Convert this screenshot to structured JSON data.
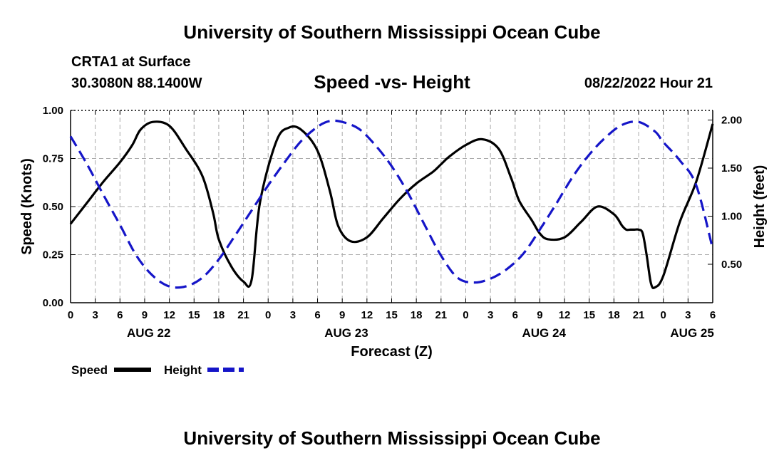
{
  "header": {
    "title": "University of Southern Mississippi Ocean Cube",
    "station": "CRTA1 at Surface",
    "coords": "30.3080N  88.1400W",
    "subtitle": "Speed -vs- Height",
    "datetime": "08/22/2022 Hour 21"
  },
  "footer": {
    "title": "University of Southern Mississippi Ocean Cube"
  },
  "chart_data": {
    "type": "line",
    "x_unit": "hours since 08/22 00Z",
    "x_range": [
      0,
      78
    ],
    "x_tick_step": 3,
    "x_tick_labels": [
      "0",
      "3",
      "6",
      "9",
      "12",
      "15",
      "18",
      "21",
      "0",
      "3",
      "6",
      "9",
      "12",
      "15",
      "18",
      "21",
      "0",
      "3",
      "6",
      "9",
      "12",
      "15",
      "18",
      "21",
      "0",
      "3",
      "6"
    ],
    "date_labels": [
      {
        "text": "AUG 22",
        "hour": 9.5
      },
      {
        "text": "AUG 23",
        "hour": 33.5
      },
      {
        "text": "AUG 24",
        "hour": 57.5
      },
      {
        "text": "AUG 25",
        "hour": 75.5
      }
    ],
    "xlabel": "Forecast (Z)",
    "ylabel_left": "Speed (Knots)",
    "ylabel_right": "Height (feet)",
    "ylim_left": [
      0,
      1.0
    ],
    "ylim_right": [
      0.1,
      2.1
    ],
    "yticks_left": [
      "0.00",
      "0.25",
      "0.50",
      "0.75",
      "1.00"
    ],
    "yticks_right": [
      "0.50",
      "1.00",
      "1.50",
      "2.00"
    ],
    "grid": true,
    "series": [
      {
        "name": "Speed",
        "axis": "left",
        "color": "#000000",
        "style": "solid",
        "x": [
          0,
          2,
          4,
          6,
          7.5,
          8.5,
          10,
          12,
          14,
          16,
          17.3,
          18,
          19.5,
          21,
          22,
          23,
          25,
          26.5,
          28,
          30,
          31.5,
          32.5,
          34,
          36,
          38,
          40,
          42,
          44,
          45,
          46,
          48,
          50,
          52,
          53.5,
          54.5,
          56,
          57,
          58,
          60,
          62,
          64,
          66,
          67,
          67.5,
          68,
          68.5,
          69,
          69.5,
          70,
          70.5,
          71,
          72,
          74,
          76,
          78
        ],
        "values": [
          0.41,
          0.52,
          0.63,
          0.73,
          0.82,
          0.9,
          0.94,
          0.92,
          0.8,
          0.66,
          0.47,
          0.33,
          0.19,
          0.11,
          0.12,
          0.52,
          0.84,
          0.91,
          0.9,
          0.79,
          0.58,
          0.4,
          0.32,
          0.34,
          0.44,
          0.54,
          0.62,
          0.68,
          0.72,
          0.76,
          0.82,
          0.85,
          0.8,
          0.65,
          0.53,
          0.43,
          0.36,
          0.33,
          0.34,
          0.42,
          0.5,
          0.46,
          0.4,
          0.38,
          0.38,
          0.38,
          0.38,
          0.36,
          0.24,
          0.1,
          0.08,
          0.14,
          0.42,
          0.63,
          0.93
        ]
      },
      {
        "name": "Height",
        "axis": "right",
        "color": "#1515c8",
        "style": "dashed",
        "x": [
          0,
          2,
          4,
          6,
          8,
          10,
          12,
          14,
          16,
          18,
          20,
          22,
          24,
          26,
          28,
          30,
          31.5,
          33,
          35,
          37,
          39,
          41,
          43,
          45,
          47,
          49,
          51,
          53,
          55,
          57,
          59,
          61,
          63,
          65,
          67,
          69,
          71,
          72,
          74,
          76,
          78
        ],
        "values": [
          1.83,
          1.54,
          1.22,
          0.91,
          0.59,
          0.38,
          0.27,
          0.27,
          0.36,
          0.55,
          0.8,
          1.06,
          1.32,
          1.56,
          1.78,
          1.93,
          1.99,
          1.98,
          1.91,
          1.74,
          1.52,
          1.24,
          0.91,
          0.59,
          0.36,
          0.31,
          0.35,
          0.45,
          0.61,
          0.86,
          1.13,
          1.41,
          1.64,
          1.82,
          1.95,
          1.98,
          1.88,
          1.77,
          1.58,
          1.32,
          0.66
        ]
      }
    ],
    "legend": {
      "position": "bottom-left",
      "items": [
        {
          "label": "Speed",
          "color": "#000000",
          "style": "solid"
        },
        {
          "label": "Height",
          "color": "#1515c8",
          "style": "dashed"
        }
      ]
    }
  }
}
